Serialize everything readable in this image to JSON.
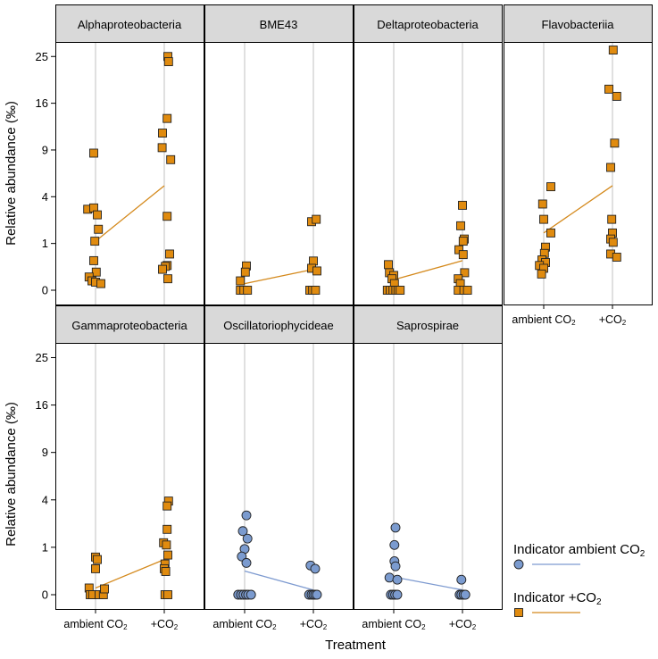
{
  "chart_data": {
    "type": "scatter",
    "layout": "faceted grid, 4 columns x 2 rows",
    "xlabel": "Treatment",
    "ylabel": "Relative abundance (‰)",
    "categories": [
      "ambient CO2",
      "+CO2"
    ],
    "category_labels": [
      {
        "main": "ambient CO",
        "sub": "2",
        "post": ""
      },
      {
        "main": "+CO",
        "sub": "2",
        "post": ""
      }
    ],
    "y_scale": "square-root",
    "y_ticks": [
      0,
      1,
      4,
      9,
      16,
      25
    ],
    "ylim": [
      0,
      28
    ],
    "colors": {
      "ambient": "#7b9bcf",
      "elevated": "#e08b0f",
      "ambient_line": "#7d9ad0",
      "elevated_line": "#d4891c",
      "strip_bg": "#d9d9d9",
      "gridline": "#cccccc"
    },
    "legend": {
      "position": "bottom-right",
      "entries": [
        {
          "label": "Indicator ambient CO",
          "sub": "2",
          "marker": "circle",
          "color": "#7b9bcf",
          "line_color": "#7d9ad0"
        },
        {
          "label": "Indicator +CO",
          "sub": "2",
          "marker": "square",
          "color": "#e08b0f",
          "line_color": "#d4891c"
        }
      ]
    },
    "panels": [
      {
        "title": "Alphaproteobacteria",
        "marker": "square",
        "color": "#e08b0f",
        "line_color": "#d4891c",
        "series": [
          {
            "name": "ambient CO2",
            "points": [
              [
                -0.05,
                8.6
              ],
              [
                -0.22,
                3.0
              ],
              [
                -0.05,
                3.1
              ],
              [
                0.05,
                2.6
              ],
              [
                0.08,
                1.7
              ],
              [
                -0.02,
                1.1
              ],
              [
                -0.05,
                0.4
              ],
              [
                0.02,
                0.15
              ],
              [
                -0.18,
                0.08
              ],
              [
                -0.1,
                0.04
              ],
              [
                0.0,
                0.03
              ],
              [
                0.15,
                0.02
              ]
            ]
          },
          {
            "name": "+CO2",
            "points": [
              [
                0.1,
                25.0
              ],
              [
                0.12,
                23.9
              ],
              [
                0.08,
                13.5
              ],
              [
                -0.05,
                11.3
              ],
              [
                -0.06,
                9.3
              ],
              [
                0.18,
                7.8
              ],
              [
                0.08,
                2.5
              ],
              [
                0.15,
                0.6
              ],
              [
                0.08,
                0.28
              ],
              [
                0.03,
                0.26
              ],
              [
                -0.05,
                0.2
              ],
              [
                0.1,
                0.06
              ]
            ]
          }
        ],
        "means": [
          1.1,
          5.0
        ]
      },
      {
        "title": "BME43",
        "marker": "square",
        "color": "#e08b0f",
        "line_color": "#d4891c",
        "series": [
          {
            "name": "ambient CO2",
            "points": [
              [
                0.05,
                0.27
              ],
              [
                0.02,
                0.15
              ],
              [
                -0.12,
                0.04
              ],
              [
                -0.12,
                0.0
              ],
              [
                -0.02,
                0.0
              ],
              [
                0.08,
                0.0
              ]
            ]
          },
          {
            "name": "+CO2",
            "points": [
              [
                -0.05,
                2.15
              ],
              [
                0.08,
                2.3
              ],
              [
                0.0,
                0.39
              ],
              [
                -0.05,
                0.22
              ],
              [
                0.1,
                0.17
              ],
              [
                -0.1,
                0.0
              ],
              [
                -0.02,
                0.0
              ],
              [
                0.06,
                0.0
              ]
            ]
          }
        ],
        "means": [
          0.02,
          0.2
        ]
      },
      {
        "title": "Deltaproteobacteria",
        "marker": "square",
        "color": "#e08b0f",
        "line_color": "#d4891c",
        "series": [
          {
            "name": "ambient CO2",
            "points": [
              [
                -0.15,
                0.3
              ],
              [
                -0.12,
                0.14
              ],
              [
                0.0,
                0.1
              ],
              [
                -0.05,
                0.06
              ],
              [
                0.02,
                0.02
              ],
              [
                -0.18,
                0.0
              ],
              [
                -0.1,
                0.0
              ],
              [
                -0.02,
                0.0
              ],
              [
                0.06,
                0.0
              ],
              [
                0.12,
                0.0
              ],
              [
                0.18,
                0.0
              ]
            ]
          },
          {
            "name": "+CO2",
            "points": [
              [
                0.0,
                3.3
              ],
              [
                -0.05,
                1.9
              ],
              [
                0.05,
                1.2
              ],
              [
                0.02,
                1.1
              ],
              [
                -0.1,
                0.75
              ],
              [
                0.02,
                0.58
              ],
              [
                0.06,
                0.14
              ],
              [
                -0.12,
                0.06
              ],
              [
                -0.06,
                0.02
              ],
              [
                -0.12,
                0.0
              ],
              [
                0.04,
                0.0
              ],
              [
                0.14,
                0.0
              ]
            ]
          }
        ],
        "means": [
          0.05,
          0.4
        ]
      },
      {
        "title": "Flavobacteriia",
        "marker": "square",
        "color": "#e08b0f",
        "line_color": "#d4891c",
        "series": [
          {
            "name": "ambient CO2",
            "points": [
              [
                0.2,
                4.9
              ],
              [
                -0.03,
                3.4
              ],
              [
                0.0,
                2.3
              ],
              [
                0.2,
                1.5
              ],
              [
                0.05,
                0.85
              ],
              [
                0.02,
                0.62
              ],
              [
                -0.05,
                0.42
              ],
              [
                0.05,
                0.35
              ],
              [
                -0.12,
                0.28
              ],
              [
                0.0,
                0.22
              ],
              [
                -0.06,
                0.12
              ]
            ]
          },
          {
            "name": "+CO2",
            "points": [
              [
                0.02,
                26.4
              ],
              [
                -0.1,
                18.5
              ],
              [
                0.12,
                17.2
              ],
              [
                0.06,
                9.9
              ],
              [
                -0.05,
                6.9
              ],
              [
                -0.02,
                2.3
              ],
              [
                0.0,
                1.5
              ],
              [
                -0.05,
                1.2
              ],
              [
                0.02,
                1.05
              ],
              [
                -0.05,
                0.6
              ],
              [
                0.12,
                0.5
              ]
            ]
          }
        ],
        "means": [
          1.5,
          5.0
        ]
      },
      {
        "title": "Gammaproteobacteria",
        "marker": "square",
        "color": "#e08b0f",
        "line_color": "#d4891c",
        "series": [
          {
            "name": "ambient CO2",
            "points": [
              [
                0.0,
                0.63
              ],
              [
                0.05,
                0.55
              ],
              [
                0.0,
                0.3
              ],
              [
                -0.18,
                0.02
              ],
              [
                -0.15,
                0.0
              ],
              [
                -0.08,
                0.0
              ],
              [
                0.1,
                0.0
              ],
              [
                0.22,
                0.0
              ],
              [
                0.25,
                0.015
              ]
            ]
          },
          {
            "name": "+CO2",
            "points": [
              [
                0.12,
                3.9
              ],
              [
                0.08,
                3.5
              ],
              [
                0.08,
                1.9
              ],
              [
                -0.02,
                1.2
              ],
              [
                0.06,
                1.1
              ],
              [
                0.1,
                0.7
              ],
              [
                0.02,
                0.42
              ],
              [
                0.0,
                0.3
              ],
              [
                0.04,
                0.24
              ],
              [
                0.02,
                0.0
              ],
              [
                0.1,
                0.0
              ]
            ]
          }
        ],
        "means": [
          0.02,
          0.55
        ]
      },
      {
        "title": "Oscillatoriophycideae",
        "marker": "circle",
        "color": "#7b9bcf",
        "line_color": "#7d9ad0",
        "series": [
          {
            "name": "ambient CO2",
            "points": [
              [
                0.05,
                2.8
              ],
              [
                -0.05,
                1.8
              ],
              [
                0.08,
                1.4
              ],
              [
                0.0,
                0.93
              ],
              [
                -0.08,
                0.65
              ],
              [
                0.05,
                0.45
              ],
              [
                -0.18,
                0.0
              ],
              [
                -0.1,
                0.0
              ],
              [
                -0.03,
                0.0
              ],
              [
                0.04,
                0.0
              ],
              [
                0.1,
                0.0
              ],
              [
                0.18,
                0.0
              ]
            ]
          },
          {
            "name": "+CO2",
            "points": [
              [
                -0.08,
                0.38
              ],
              [
                0.05,
                0.3
              ],
              [
                -0.12,
                0.0
              ],
              [
                -0.05,
                0.0
              ],
              [
                0.0,
                0.0
              ],
              [
                0.05,
                0.0
              ],
              [
                0.1,
                0.0
              ]
            ]
          }
        ],
        "means": [
          0.25,
          0.01
        ]
      },
      {
        "title": "Saprospirae",
        "marker": "circle",
        "color": "#7b9bcf",
        "line_color": "#7d9ad0",
        "series": [
          {
            "name": "ambient CO2",
            "points": [
              [
                0.05,
                2.0
              ],
              [
                0.02,
                1.1
              ],
              [
                0.02,
                0.5
              ],
              [
                0.05,
                0.36
              ],
              [
                -0.12,
                0.13
              ],
              [
                0.1,
                0.1
              ],
              [
                -0.08,
                0.0
              ],
              [
                -0.02,
                0.0
              ],
              [
                0.04,
                0.0
              ],
              [
                0.1,
                0.0
              ]
            ]
          },
          {
            "name": "+CO2",
            "points": [
              [
                -0.03,
                0.1
              ],
              [
                -0.08,
                0.0
              ],
              [
                -0.03,
                0.0
              ],
              [
                0.03,
                0.0
              ],
              [
                0.08,
                0.0
              ]
            ]
          }
        ],
        "means": [
          0.14,
          0.01
        ]
      }
    ]
  }
}
